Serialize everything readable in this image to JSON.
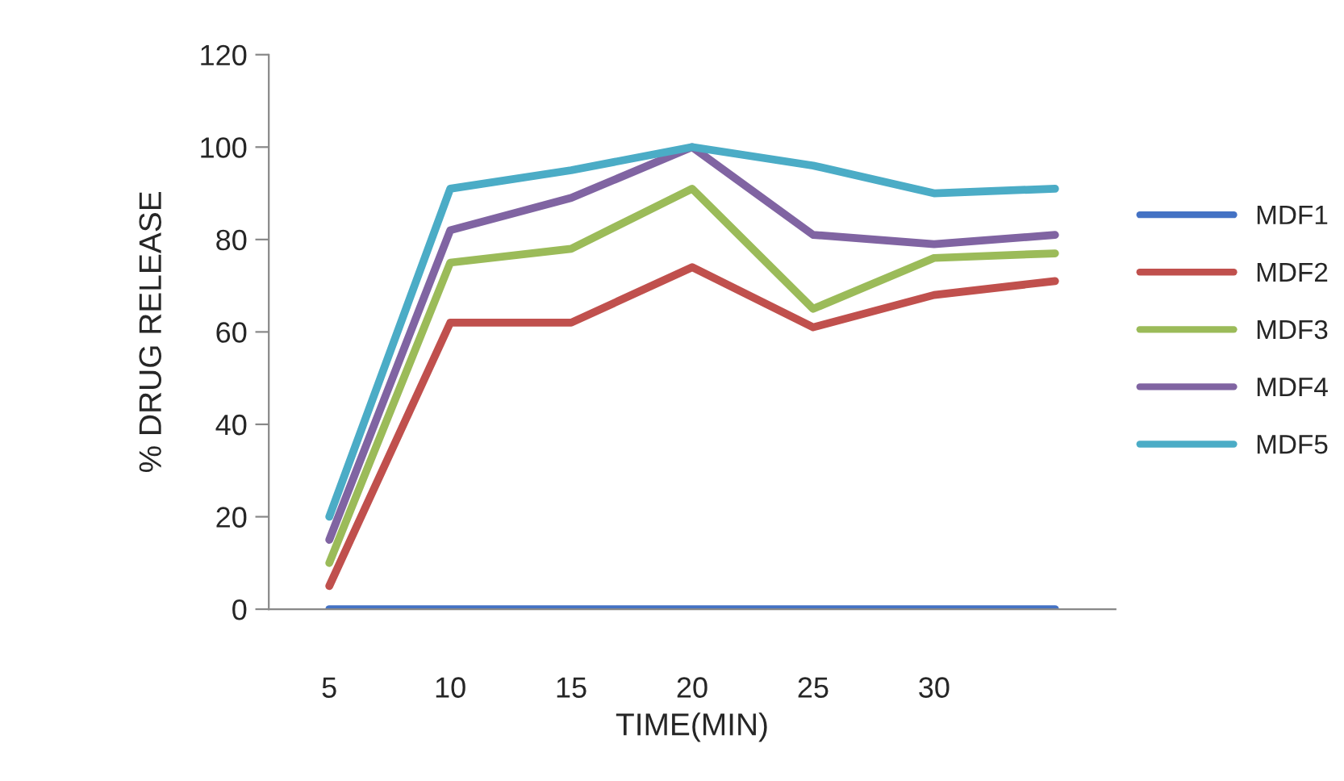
{
  "chart_data": {
    "type": "line",
    "xlabel": "TIME(MIN)",
    "ylabel": "% DRUG RELEASE",
    "categories": [
      "5",
      "10",
      "15",
      "20",
      "25",
      "30",
      null
    ],
    "series": [
      {
        "name": "MDF1",
        "color": "#4472c4",
        "values": [
          0,
          0,
          0,
          0,
          0,
          0,
          0
        ]
      },
      {
        "name": "MDF2",
        "color": "#c0504d",
        "values": [
          5,
          62,
          62,
          74,
          61,
          68,
          71
        ]
      },
      {
        "name": "MDF3",
        "color": "#9bbb59",
        "values": [
          10,
          75,
          78,
          91,
          65,
          76,
          77
        ]
      },
      {
        "name": "MDF4",
        "color": "#8064a2",
        "values": [
          15,
          82,
          89,
          100,
          81,
          79,
          81
        ]
      },
      {
        "name": "MDF5",
        "color": "#4bacc6",
        "values": [
          20,
          91,
          95,
          100,
          96,
          90,
          91
        ]
      }
    ],
    "ylim": [
      0,
      120
    ],
    "yticks": [
      0,
      20,
      40,
      60,
      80,
      100,
      120
    ],
    "grid": false,
    "legend": "right"
  }
}
